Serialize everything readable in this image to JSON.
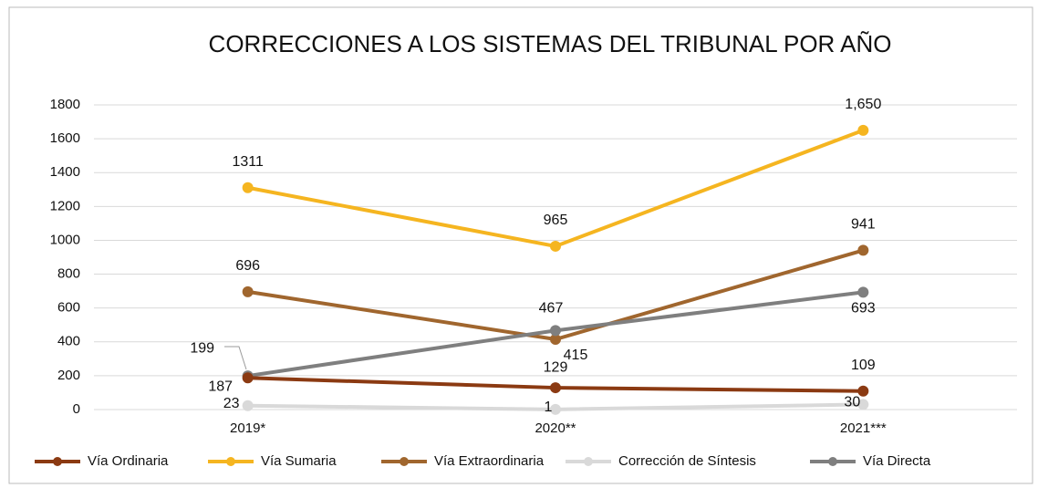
{
  "chart_data": {
    "type": "line",
    "title": "CORRECCIONES A LOS SISTEMAS DEL TRIBUNAL POR AÑO",
    "categories": [
      "2019*",
      "2020**",
      "2021***"
    ],
    "series": [
      {
        "name": "Vía Ordinaria",
        "color": "#8b3a12",
        "values": [
          187,
          129,
          109
        ]
      },
      {
        "name": "Vía Sumaria",
        "color": "#f5b520",
        "values": [
          1311,
          965,
          1650
        ],
        "value_labels": [
          "1311",
          "965",
          "1,650"
        ]
      },
      {
        "name": "Vía Extraordinaria",
        "color": "#a0662e",
        "values": [
          696,
          415,
          941
        ]
      },
      {
        "name": "Corrección de Síntesis",
        "color": "#d9d9d9",
        "values": [
          23,
          1,
          30
        ]
      },
      {
        "name": "Vía Directa",
        "color": "#7f7f7f",
        "values": [
          199,
          467,
          693
        ]
      }
    ],
    "ylim": [
      0,
      1800
    ],
    "yticks": [
      0,
      200,
      400,
      600,
      800,
      1000,
      1200,
      1400,
      1600,
      1800
    ],
    "grid": true
  }
}
